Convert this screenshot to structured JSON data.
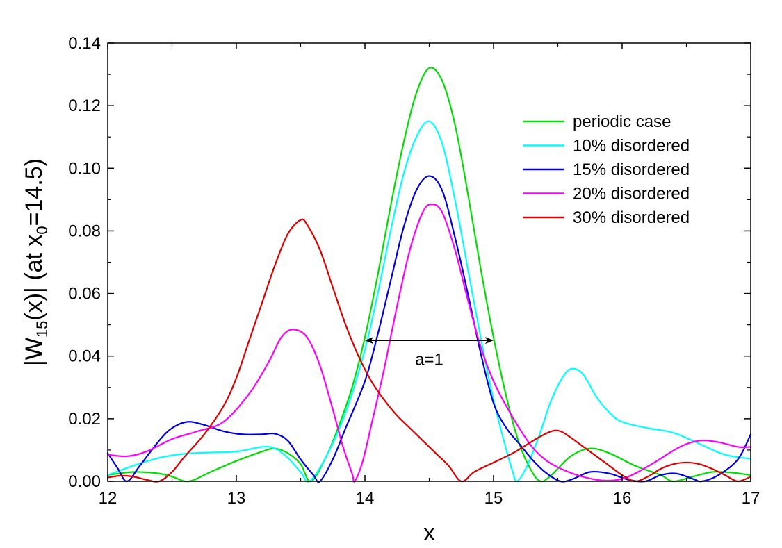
{
  "chart_data": {
    "type": "line",
    "title": "",
    "xlabel": "x",
    "ylabel": {
      "prefix": "|W",
      "sub": "15",
      "mid": "(x)|  (at x",
      "sub2": "0",
      "suffix": "=14.5)"
    },
    "xlim": [
      12,
      17
    ],
    "ylim": [
      0.0,
      0.14
    ],
    "xticks": [
      12,
      13,
      14,
      15,
      16,
      17
    ],
    "xtick_labels": [
      "12",
      "13",
      "14",
      "15",
      "16",
      "17"
    ],
    "yticks": [
      0.0,
      0.02,
      0.04,
      0.06,
      0.08,
      0.1,
      0.12,
      0.14
    ],
    "ytick_labels": [
      "0.00",
      "0.02",
      "0.04",
      "0.06",
      "0.08",
      "0.10",
      "0.12",
      "0.14"
    ],
    "grid": false,
    "legend_position": "top-right",
    "annotation": {
      "text": "a=1",
      "arrow_from_x": 14.0,
      "arrow_to_x": 15.0,
      "arrow_y": 0.045,
      "text_x": 14.5,
      "text_y": 0.038
    },
    "series": [
      {
        "name": "periodic case",
        "color": "#00dd00",
        "points": [
          [
            12.0,
            0.002
          ],
          [
            12.2,
            0.003
          ],
          [
            12.4,
            0.0025
          ],
          [
            12.5,
            0.0015
          ],
          [
            12.63,
            0.0
          ],
          [
            12.8,
            0.003
          ],
          [
            13.0,
            0.0065
          ],
          [
            13.2,
            0.0095
          ],
          [
            13.3,
            0.0105
          ],
          [
            13.4,
            0.009
          ],
          [
            13.5,
            0.0055
          ],
          [
            13.58,
            0.0
          ],
          [
            13.7,
            0.008
          ],
          [
            13.8,
            0.018
          ],
          [
            13.9,
            0.03
          ],
          [
            14.0,
            0.046
          ],
          [
            14.1,
            0.066
          ],
          [
            14.2,
            0.088
          ],
          [
            14.3,
            0.108
          ],
          [
            14.4,
            0.124
          ],
          [
            14.5,
            0.132
          ],
          [
            14.6,
            0.128
          ],
          [
            14.7,
            0.114
          ],
          [
            14.8,
            0.092
          ],
          [
            14.9,
            0.068
          ],
          [
            15.0,
            0.046
          ],
          [
            15.1,
            0.027
          ],
          [
            15.2,
            0.012
          ],
          [
            15.3,
            0.003
          ],
          [
            15.37,
            0.0
          ],
          [
            15.45,
            0.002
          ],
          [
            15.6,
            0.008
          ],
          [
            15.75,
            0.0105
          ],
          [
            15.9,
            0.009
          ],
          [
            16.1,
            0.005
          ],
          [
            16.3,
            0.002
          ],
          [
            16.4,
            0.0
          ],
          [
            16.55,
            0.0015
          ],
          [
            16.7,
            0.003
          ],
          [
            16.85,
            0.0028
          ],
          [
            17.0,
            0.002
          ]
        ]
      },
      {
        "name": "10% disordered",
        "color": "#00ffff",
        "points": [
          [
            12.0,
            0.002
          ],
          [
            12.2,
            0.005
          ],
          [
            12.4,
            0.0075
          ],
          [
            12.6,
            0.0088
          ],
          [
            12.8,
            0.0092
          ],
          [
            13.0,
            0.0095
          ],
          [
            13.2,
            0.011
          ],
          [
            13.3,
            0.0105
          ],
          [
            13.4,
            0.0075
          ],
          [
            13.5,
            0.003
          ],
          [
            13.57,
            0.0
          ],
          [
            13.7,
            0.008
          ],
          [
            13.85,
            0.022
          ],
          [
            14.0,
            0.042
          ],
          [
            14.1,
            0.06
          ],
          [
            14.2,
            0.08
          ],
          [
            14.3,
            0.098
          ],
          [
            14.4,
            0.11
          ],
          [
            14.5,
            0.115
          ],
          [
            14.6,
            0.108
          ],
          [
            14.7,
            0.09
          ],
          [
            14.8,
            0.068
          ],
          [
            14.9,
            0.046
          ],
          [
            15.0,
            0.026
          ],
          [
            15.1,
            0.01
          ],
          [
            15.15,
            0.003
          ],
          [
            15.18,
            0.0
          ],
          [
            15.25,
            0.004
          ],
          [
            15.35,
            0.014
          ],
          [
            15.45,
            0.026
          ],
          [
            15.55,
            0.034
          ],
          [
            15.62,
            0.036
          ],
          [
            15.7,
            0.034
          ],
          [
            15.8,
            0.027
          ],
          [
            15.9,
            0.022
          ],
          [
            16.0,
            0.019
          ],
          [
            16.2,
            0.017
          ],
          [
            16.4,
            0.0155
          ],
          [
            16.6,
            0.012
          ],
          [
            16.8,
            0.0085
          ],
          [
            17.0,
            0.0072
          ]
        ]
      },
      {
        "name": "15% disordered",
        "color": "#0000dd",
        "points": [
          [
            12.0,
            0.009
          ],
          [
            12.08,
            0.004
          ],
          [
            12.15,
            0.0
          ],
          [
            12.25,
            0.005
          ],
          [
            12.4,
            0.013
          ],
          [
            12.5,
            0.017
          ],
          [
            12.62,
            0.019
          ],
          [
            12.75,
            0.018
          ],
          [
            12.9,
            0.016
          ],
          [
            13.05,
            0.015
          ],
          [
            13.2,
            0.015
          ],
          [
            13.3,
            0.0152
          ],
          [
            13.4,
            0.013
          ],
          [
            13.5,
            0.007
          ],
          [
            13.6,
            0.002
          ],
          [
            13.65,
            0.0
          ],
          [
            13.75,
            0.007
          ],
          [
            13.85,
            0.017
          ],
          [
            14.0,
            0.032
          ],
          [
            14.1,
            0.047
          ],
          [
            14.2,
            0.064
          ],
          [
            14.3,
            0.081
          ],
          [
            14.4,
            0.093
          ],
          [
            14.5,
            0.0975
          ],
          [
            14.6,
            0.093
          ],
          [
            14.7,
            0.078
          ],
          [
            14.8,
            0.06
          ],
          [
            14.9,
            0.041
          ],
          [
            15.0,
            0.025
          ],
          [
            15.1,
            0.017
          ],
          [
            15.2,
            0.012
          ],
          [
            15.3,
            0.007
          ],
          [
            15.4,
            0.003
          ],
          [
            15.52,
            0.0
          ],
          [
            15.62,
            0.0008
          ],
          [
            15.75,
            0.003
          ],
          [
            15.9,
            0.0025
          ],
          [
            16.05,
            0.0005
          ],
          [
            16.18,
            0.0
          ],
          [
            16.3,
            0.002
          ],
          [
            16.42,
            0.0025
          ],
          [
            16.55,
            0.0008
          ],
          [
            16.62,
            0.0
          ],
          [
            16.75,
            0.002
          ],
          [
            16.9,
            0.007
          ],
          [
            17.0,
            0.015
          ]
        ]
      },
      {
        "name": "20% disordered",
        "color": "#ff00ff",
        "points": [
          [
            12.0,
            0.0085
          ],
          [
            12.15,
            0.008
          ],
          [
            12.3,
            0.0095
          ],
          [
            12.5,
            0.0135
          ],
          [
            12.7,
            0.016
          ],
          [
            12.9,
            0.019
          ],
          [
            13.1,
            0.028
          ],
          [
            13.25,
            0.038
          ],
          [
            13.35,
            0.046
          ],
          [
            13.44,
            0.0485
          ],
          [
            13.55,
            0.046
          ],
          [
            13.65,
            0.037
          ],
          [
            13.75,
            0.023
          ],
          [
            13.83,
            0.011
          ],
          [
            13.9,
            0.0025
          ],
          [
            13.92,
            0.0
          ],
          [
            13.98,
            0.006
          ],
          [
            14.05,
            0.018
          ],
          [
            14.15,
            0.036
          ],
          [
            14.25,
            0.056
          ],
          [
            14.35,
            0.074
          ],
          [
            14.45,
            0.086
          ],
          [
            14.52,
            0.0885
          ],
          [
            14.6,
            0.086
          ],
          [
            14.7,
            0.074
          ],
          [
            14.8,
            0.058
          ],
          [
            14.9,
            0.043
          ],
          [
            15.0,
            0.032
          ],
          [
            15.1,
            0.024
          ],
          [
            15.2,
            0.017
          ],
          [
            15.3,
            0.011
          ],
          [
            15.4,
            0.007
          ],
          [
            15.5,
            0.0045
          ],
          [
            15.65,
            0.002
          ],
          [
            15.8,
            0.0005
          ],
          [
            15.9,
            0.0002
          ],
          [
            16.0,
            0.0008
          ],
          [
            16.1,
            0.0025
          ],
          [
            16.25,
            0.006
          ],
          [
            16.45,
            0.011
          ],
          [
            16.6,
            0.013
          ],
          [
            16.75,
            0.0125
          ],
          [
            16.9,
            0.011
          ],
          [
            17.0,
            0.011
          ]
        ]
      },
      {
        "name": "30% disordered",
        "color": "#dd0000",
        "points": [
          [
            12.0,
            0.0012
          ],
          [
            12.1,
            0.0018
          ],
          [
            12.2,
            0.0015
          ],
          [
            12.3,
            0.0005
          ],
          [
            12.4,
            0.0
          ],
          [
            12.5,
            0.003
          ],
          [
            12.6,
            0.008
          ],
          [
            12.75,
            0.015
          ],
          [
            12.9,
            0.024
          ],
          [
            13.0,
            0.033
          ],
          [
            13.1,
            0.045
          ],
          [
            13.2,
            0.057
          ],
          [
            13.3,
            0.069
          ],
          [
            13.4,
            0.079
          ],
          [
            13.5,
            0.0835
          ],
          [
            13.55,
            0.082
          ],
          [
            13.65,
            0.074
          ],
          [
            13.75,
            0.062
          ],
          [
            13.85,
            0.05
          ],
          [
            13.95,
            0.04
          ],
          [
            14.05,
            0.032
          ],
          [
            14.15,
            0.026
          ],
          [
            14.25,
            0.021
          ],
          [
            14.35,
            0.017
          ],
          [
            14.45,
            0.013
          ],
          [
            14.55,
            0.009
          ],
          [
            14.65,
            0.005
          ],
          [
            14.75,
            0.0
          ],
          [
            14.85,
            0.003
          ],
          [
            15.0,
            0.006
          ],
          [
            15.15,
            0.009
          ],
          [
            15.25,
            0.0115
          ],
          [
            15.35,
            0.014
          ],
          [
            15.45,
            0.016
          ],
          [
            15.52,
            0.016
          ],
          [
            15.6,
            0.014
          ],
          [
            15.7,
            0.011
          ],
          [
            15.8,
            0.008
          ],
          [
            15.9,
            0.005
          ],
          [
            16.0,
            0.002
          ],
          [
            16.1,
            0.0
          ],
          [
            16.2,
            0.0015
          ],
          [
            16.3,
            0.004
          ],
          [
            16.4,
            0.0055
          ],
          [
            16.5,
            0.006
          ],
          [
            16.6,
            0.0055
          ],
          [
            16.7,
            0.004
          ],
          [
            16.8,
            0.002
          ],
          [
            16.9,
            0.0
          ],
          [
            17.0,
            0.0015
          ]
        ]
      }
    ]
  }
}
